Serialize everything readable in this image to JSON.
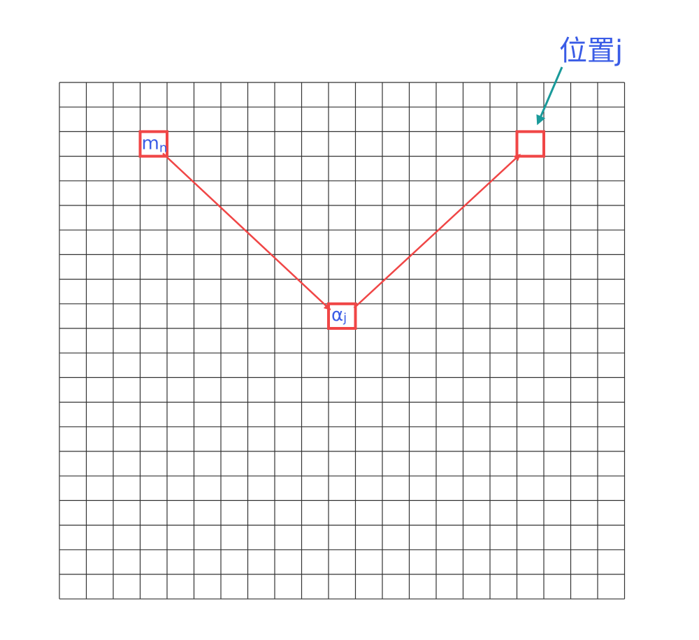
{
  "grid": {
    "columns": 21,
    "rows": 21,
    "line_color": "#333333"
  },
  "cells": {
    "m_n": {
      "col": 3,
      "row": 2,
      "text": "m",
      "sub": "n"
    },
    "alpha_j": {
      "col": 10,
      "row": 9,
      "text": "α",
      "sub": "j"
    },
    "position_j": {
      "col": 17,
      "row": 2
    }
  },
  "callout": {
    "label": "位置j",
    "arrow_color": "#1a9a9a"
  },
  "colors": {
    "highlight": "#f04646",
    "text": "#3a5ce6"
  }
}
